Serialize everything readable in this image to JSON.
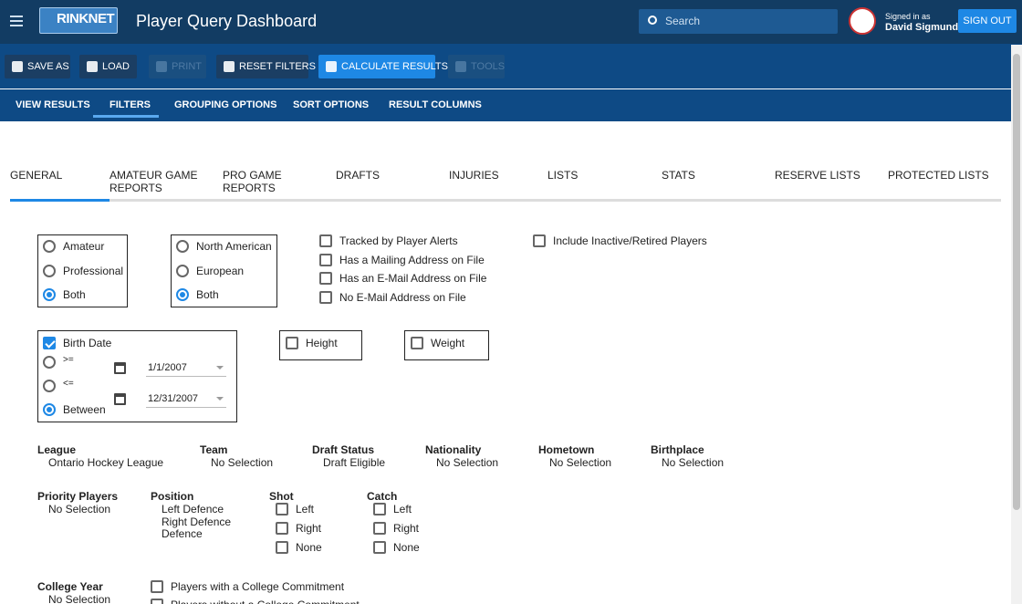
{
  "header": {
    "logo": "RINKNET",
    "title": "Player Query Dashboard",
    "search": "Search",
    "signed_in_label": "Signed in as",
    "user": "David Sigmund",
    "sign_out": "SIGN OUT"
  },
  "toolbar": [
    {
      "label": "SAVE AS",
      "disabled": false
    },
    {
      "label": "LOAD",
      "disabled": false
    },
    {
      "label": "PRINT",
      "disabled": true
    },
    {
      "label": "RESET FILTERS",
      "disabled": false
    },
    {
      "label": "CALCULATE RESULTS",
      "disabled": false,
      "primary": true
    },
    {
      "label": "TOOLS",
      "disabled": true
    }
  ],
  "tabs": {
    "items": [
      "VIEW RESULTS",
      "FILTERS",
      "GROUPING OPTIONS",
      "SORT OPTIONS",
      "RESULT COLUMNS"
    ],
    "active": 1
  },
  "subtabs": {
    "items": [
      "GENERAL",
      "AMATEUR GAME REPORTS",
      "PRO GAME REPORTS",
      "DRAFTS",
      "INJURIES",
      "LISTS",
      "STATS",
      "RESERVE LISTS",
      "PROTECTED LISTS"
    ],
    "active": 0
  },
  "level": {
    "options": [
      "Amateur",
      "Professional",
      "Both"
    ],
    "selected": 2
  },
  "region": {
    "options": [
      "North American",
      "European",
      "Both"
    ],
    "selected": 2
  },
  "flags": [
    "Tracked by Player Alerts",
    "Has a Mailing Address on File",
    "Has an E-Mail Address on File",
    "No E-Mail Address on File"
  ],
  "inactive": "Include Inactive/Retired Players",
  "birth_date": {
    "label": "Birth Date",
    "checked": true,
    "options": [
      ">=",
      "<=",
      "Between"
    ],
    "selected": 2,
    "from": "1/1/2007",
    "to": "12/31/2007"
  },
  "height": "Height",
  "weight": "Weight",
  "fields": [
    {
      "label": "League",
      "value": "Ontario Hockey League"
    },
    {
      "label": "Team",
      "value": "No Selection"
    },
    {
      "label": "Draft Status",
      "value": "Draft Eligible"
    },
    {
      "label": "Nationality",
      "value": "No Selection"
    },
    {
      "label": "Hometown",
      "value": "No Selection"
    },
    {
      "label": "Birthplace",
      "value": "No Selection"
    }
  ],
  "priority": {
    "label": "Priority Players",
    "value": "No Selection"
  },
  "position": {
    "label": "Position",
    "values": [
      "Left Defence",
      "Right Defence",
      "Defence"
    ]
  },
  "shot": {
    "label": "Shot",
    "options": [
      "Left",
      "Right",
      "None"
    ]
  },
  "catch": {
    "label": "Catch",
    "options": [
      "Left",
      "Right",
      "None"
    ]
  },
  "college_year": {
    "label": "College Year",
    "value": "No Selection"
  },
  "college": [
    "Players with a College Commitment",
    "Players without a College Commitment"
  ]
}
